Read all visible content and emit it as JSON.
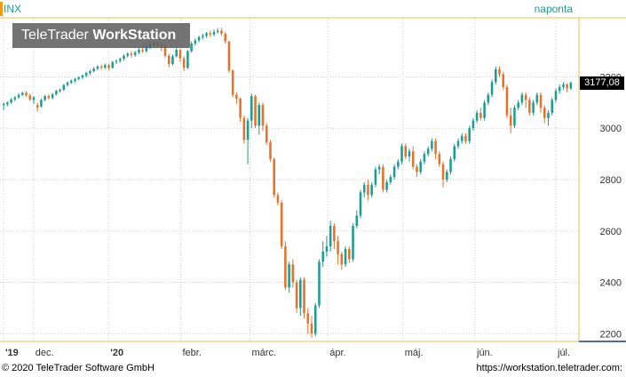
{
  "header": {
    "symbol": "INX",
    "period": "naponta",
    "watermark_regular": "TeleTrader ",
    "watermark_bold": "WorkStation"
  },
  "footer": {
    "copyright": "© 2020 TeleTrader Software GmbH",
    "url": "https://workstation.teletrader.com:"
  },
  "last_price_label": "3177,08",
  "colors": {
    "up": "#1a9e8f",
    "down": "#e8712a",
    "grid": "#d0d0d0",
    "axis_line": "#f0c040"
  },
  "chart_data": {
    "type": "candlestick",
    "y_ticks": [
      "2200",
      "2400",
      "2600",
      "2800",
      "3000",
      "3200"
    ],
    "x_ticks": [
      "'19",
      "dec.",
      "'20",
      "febr.",
      "márc.",
      "ápr.",
      "máj.",
      "jún.",
      "júl."
    ],
    "ylim": [
      2170,
      3430
    ],
    "last_value": 3177.08,
    "candles": [
      [
        3090,
        3095,
        3070,
        3100
      ],
      [
        3093,
        3100,
        3085,
        3105
      ],
      [
        3100,
        3112,
        3095,
        3118
      ],
      [
        3112,
        3120,
        3105,
        3125
      ],
      [
        3120,
        3130,
        3115,
        3135
      ],
      [
        3130,
        3138,
        3125,
        3142
      ],
      [
        3138,
        3128,
        3122,
        3145
      ],
      [
        3128,
        3112,
        3105,
        3135
      ],
      [
        3110,
        3120,
        3095,
        3125
      ],
      [
        3090,
        3080,
        3065,
        3100
      ],
      [
        3085,
        3110,
        3080,
        3115
      ],
      [
        3110,
        3125,
        3105,
        3130
      ],
      [
        3125,
        3118,
        3110,
        3132
      ],
      [
        3118,
        3132,
        3112,
        3138
      ],
      [
        3132,
        3145,
        3128,
        3150
      ],
      [
        3145,
        3150,
        3138,
        3155
      ],
      [
        3150,
        3168,
        3145,
        3172
      ],
      [
        3168,
        3178,
        3162,
        3182
      ],
      [
        3178,
        3185,
        3172,
        3190
      ],
      [
        3185,
        3192,
        3178,
        3196
      ],
      [
        3192,
        3198,
        3186,
        3202
      ],
      [
        3198,
        3205,
        3192,
        3210
      ],
      [
        3205,
        3215,
        3198,
        3220
      ],
      [
        3215,
        3222,
        3208,
        3228
      ],
      [
        3222,
        3232,
        3218,
        3238
      ],
      [
        3232,
        3240,
        3226,
        3246
      ],
      [
        3240,
        3236,
        3228,
        3248
      ],
      [
        3236,
        3245,
        3230,
        3252
      ],
      [
        3245,
        3235,
        3225,
        3252
      ],
      [
        3235,
        3258,
        3232,
        3262
      ],
      [
        3258,
        3262,
        3250,
        3268
      ],
      [
        3262,
        3270,
        3255,
        3276
      ],
      [
        3270,
        3282,
        3262,
        3288
      ],
      [
        3282,
        3290,
        3275,
        3296
      ],
      [
        3290,
        3285,
        3275,
        3300
      ],
      [
        3285,
        3295,
        3278,
        3302
      ],
      [
        3295,
        3305,
        3288,
        3312
      ],
      [
        3305,
        3300,
        3292,
        3315
      ],
      [
        3300,
        3315,
        3294,
        3322
      ],
      [
        3315,
        3325,
        3308,
        3332
      ],
      [
        3325,
        3330,
        3318,
        3338
      ],
      [
        3330,
        3322,
        3312,
        3340
      ],
      [
        3322,
        3318,
        3300,
        3330
      ],
      [
        3318,
        3282,
        3275,
        3325
      ],
      [
        3282,
        3250,
        3238,
        3290
      ],
      [
        3250,
        3280,
        3245,
        3288
      ],
      [
        3280,
        3305,
        3275,
        3312
      ],
      [
        3305,
        3272,
        3258,
        3310
      ],
      [
        3272,
        3235,
        3222,
        3280
      ],
      [
        3235,
        3300,
        3230,
        3305
      ],
      [
        3300,
        3330,
        3295,
        3338
      ],
      [
        3330,
        3342,
        3322,
        3350
      ],
      [
        3342,
        3355,
        3335,
        3360
      ],
      [
        3355,
        3360,
        3345,
        3368
      ],
      [
        3360,
        3370,
        3352,
        3375
      ],
      [
        3370,
        3365,
        3355,
        3380
      ],
      [
        3365,
        3375,
        3358,
        3385
      ],
      [
        3375,
        3380,
        3368,
        3390
      ],
      [
        3380,
        3368,
        3360,
        3392
      ],
      [
        3368,
        3338,
        3330,
        3375
      ],
      [
        3338,
        3225,
        3215,
        3340
      ],
      [
        3225,
        3130,
        3120,
        3230
      ],
      [
        3130,
        3115,
        3095,
        3140
      ],
      [
        3115,
        3040,
        3025,
        3120
      ],
      [
        3040,
        2955,
        2940,
        3050
      ],
      [
        2955,
        3030,
        2860,
        3040
      ],
      [
        3030,
        3125,
        3000,
        3135
      ],
      [
        3125,
        3010,
        3000,
        3130
      ],
      [
        3010,
        3090,
        2975,
        3100
      ],
      [
        3090,
        3010,
        2990,
        3100
      ],
      [
        3010,
        2945,
        2935,
        3020
      ],
      [
        2945,
        2880,
        2870,
        2955
      ],
      [
        2880,
        2740,
        2730,
        2885
      ],
      [
        2740,
        2710,
        2700,
        2750
      ],
      [
        2710,
        2540,
        2530,
        2720
      ],
      [
        2540,
        2380,
        2370,
        2560
      ],
      [
        2380,
        2470,
        2360,
        2480
      ],
      [
        2470,
        2400,
        2380,
        2490
      ],
      [
        2400,
        2300,
        2280,
        2410
      ],
      [
        2300,
        2410,
        2270,
        2420
      ],
      [
        2410,
        2280,
        2260,
        2420
      ],
      [
        2280,
        2240,
        2200,
        2300
      ],
      [
        2240,
        2200,
        2185,
        2270
      ],
      [
        2200,
        2310,
        2190,
        2320
      ],
      [
        2310,
        2480,
        2300,
        2490
      ],
      [
        2480,
        2520,
        2460,
        2560
      ],
      [
        2520,
        2540,
        2500,
        2580
      ],
      [
        2540,
        2620,
        2520,
        2640
      ],
      [
        2620,
        2560,
        2530,
        2630
      ],
      [
        2560,
        2510,
        2470,
        2580
      ],
      [
        2510,
        2470,
        2450,
        2520
      ],
      [
        2470,
        2530,
        2460,
        2540
      ],
      [
        2530,
        2490,
        2475,
        2540
      ],
      [
        2490,
        2620,
        2480,
        2630
      ],
      [
        2620,
        2660,
        2610,
        2680
      ],
      [
        2660,
        2750,
        2650,
        2760
      ],
      [
        2750,
        2780,
        2730,
        2790
      ],
      [
        2780,
        2740,
        2720,
        2800
      ],
      [
        2740,
        2780,
        2730,
        2790
      ],
      [
        2780,
        2840,
        2770,
        2850
      ],
      [
        2840,
        2850,
        2820,
        2860
      ],
      [
        2850,
        2760,
        2750,
        2860
      ],
      [
        2760,
        2790,
        2750,
        2800
      ],
      [
        2790,
        2810,
        2780,
        2820
      ],
      [
        2810,
        2850,
        2800,
        2860
      ],
      [
        2850,
        2870,
        2840,
        2880
      ],
      [
        2870,
        2930,
        2860,
        2940
      ],
      [
        2930,
        2890,
        2880,
        2940
      ],
      [
        2890,
        2910,
        2870,
        2920
      ],
      [
        2910,
        2850,
        2840,
        2930
      ],
      [
        2850,
        2830,
        2810,
        2860
      ],
      [
        2830,
        2870,
        2820,
        2880
      ],
      [
        2870,
        2900,
        2860,
        2910
      ],
      [
        2900,
        2920,
        2890,
        2930
      ],
      [
        2920,
        2950,
        2910,
        2960
      ],
      [
        2950,
        2900,
        2880,
        2960
      ],
      [
        2900,
        2860,
        2850,
        2910
      ],
      [
        2860,
        2800,
        2770,
        2870
      ],
      [
        2800,
        2830,
        2790,
        2840
      ],
      [
        2830,
        2880,
        2820,
        2890
      ],
      [
        2880,
        2930,
        2870,
        2940
      ],
      [
        2930,
        2950,
        2920,
        2960
      ],
      [
        2950,
        2970,
        2940,
        2980
      ],
      [
        2970,
        2950,
        2940,
        2980
      ],
      [
        2950,
        3000,
        2940,
        3010
      ],
      [
        3000,
        3030,
        2990,
        3040
      ],
      [
        3030,
        3060,
        3020,
        3070
      ],
      [
        3060,
        3040,
        3030,
        3080
      ],
      [
        3040,
        3100,
        3030,
        3110
      ],
      [
        3100,
        3130,
        3090,
        3140
      ],
      [
        3130,
        3180,
        3120,
        3190
      ],
      [
        3180,
        3230,
        3170,
        3240
      ],
      [
        3230,
        3210,
        3200,
        3240
      ],
      [
        3210,
        3160,
        3150,
        3220
      ],
      [
        3160,
        3050,
        3040,
        3170
      ],
      [
        3050,
        3010,
        2980,
        3080
      ],
      [
        3010,
        3080,
        3000,
        3090
      ],
      [
        3080,
        3100,
        3070,
        3110
      ],
      [
        3100,
        3130,
        3090,
        3140
      ],
      [
        3130,
        3110,
        3080,
        3140
      ],
      [
        3110,
        3060,
        3050,
        3120
      ],
      [
        3060,
        3100,
        3050,
        3110
      ],
      [
        3100,
        3130,
        3090,
        3140
      ],
      [
        3130,
        3080,
        3060,
        3140
      ],
      [
        3080,
        3040,
        3020,
        3090
      ],
      [
        3040,
        3060,
        3010,
        3070
      ],
      [
        3060,
        3110,
        3050,
        3120
      ],
      [
        3110,
        3145,
        3100,
        3155
      ],
      [
        3145,
        3160,
        3135,
        3170
      ],
      [
        3160,
        3170,
        3150,
        3180
      ],
      [
        3170,
        3155,
        3140,
        3175
      ],
      [
        3155,
        3177,
        3148,
        3182
      ]
    ]
  }
}
